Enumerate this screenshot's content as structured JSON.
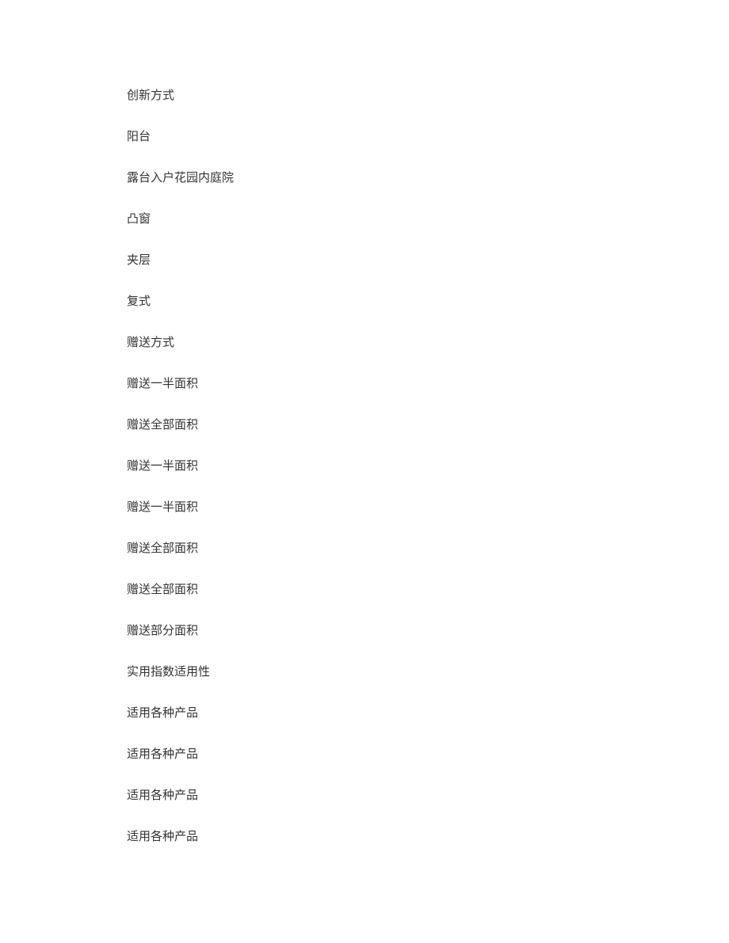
{
  "lines": [
    "创新方式",
    "阳台",
    "露台入户花园内庭院",
    "凸窗",
    "夹层",
    "复式",
    "赠送方式",
    "赠送一半面积",
    "赠送全部面积",
    "赠送一半面积",
    "赠送一半面积",
    "赠送全部面积",
    "赠送全部面积",
    "赠送部分面积",
    "实用指数适用性",
    "适用各种产品",
    "适用各种产品",
    "适用各种产品",
    "适用各种产品"
  ]
}
